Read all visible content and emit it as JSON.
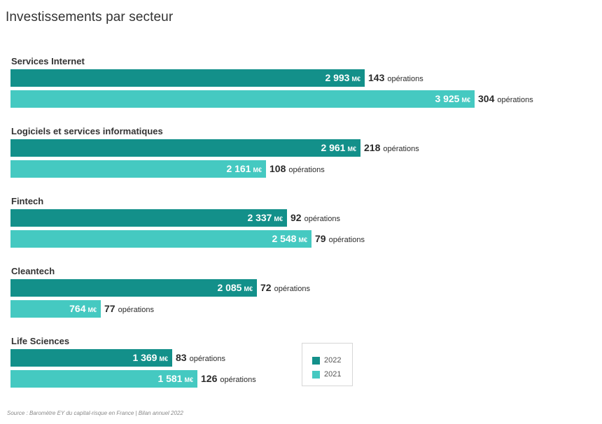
{
  "title": "Investissements par secteur",
  "source": "Source : Baromètre EY du capital-risque en France | Bilan annuel 2022",
  "colors": {
    "series_2022": "#13908A",
    "series_2021": "#45C9C1"
  },
  "chart_data": {
    "type": "bar",
    "orientation": "horizontal",
    "title": "Investissements par secteur",
    "unit": "M€",
    "ops_suffix": "opérations",
    "legend_position": "bottom-right",
    "grid": false,
    "categories": [
      "Services Internet",
      "Logiciels et services informatiques",
      "Fintech",
      "Cleantech",
      "Life Sciences"
    ],
    "series": [
      {
        "name": "2022",
        "color": "#13908A",
        "values": [
          2993,
          2961,
          2337,
          2085,
          1369
        ],
        "value_labels": [
          "2 993",
          "2 961",
          "2 337",
          "2 085",
          "1 369"
        ],
        "operations": [
          143,
          218,
          92,
          72,
          83
        ]
      },
      {
        "name": "2021",
        "color": "#45C9C1",
        "values": [
          3925,
          2161,
          2548,
          764,
          1581
        ],
        "value_labels": [
          "3 925",
          "2 161",
          "2 548",
          "764",
          "1 581"
        ],
        "operations": [
          304,
          108,
          79,
          77,
          126
        ]
      }
    ]
  }
}
